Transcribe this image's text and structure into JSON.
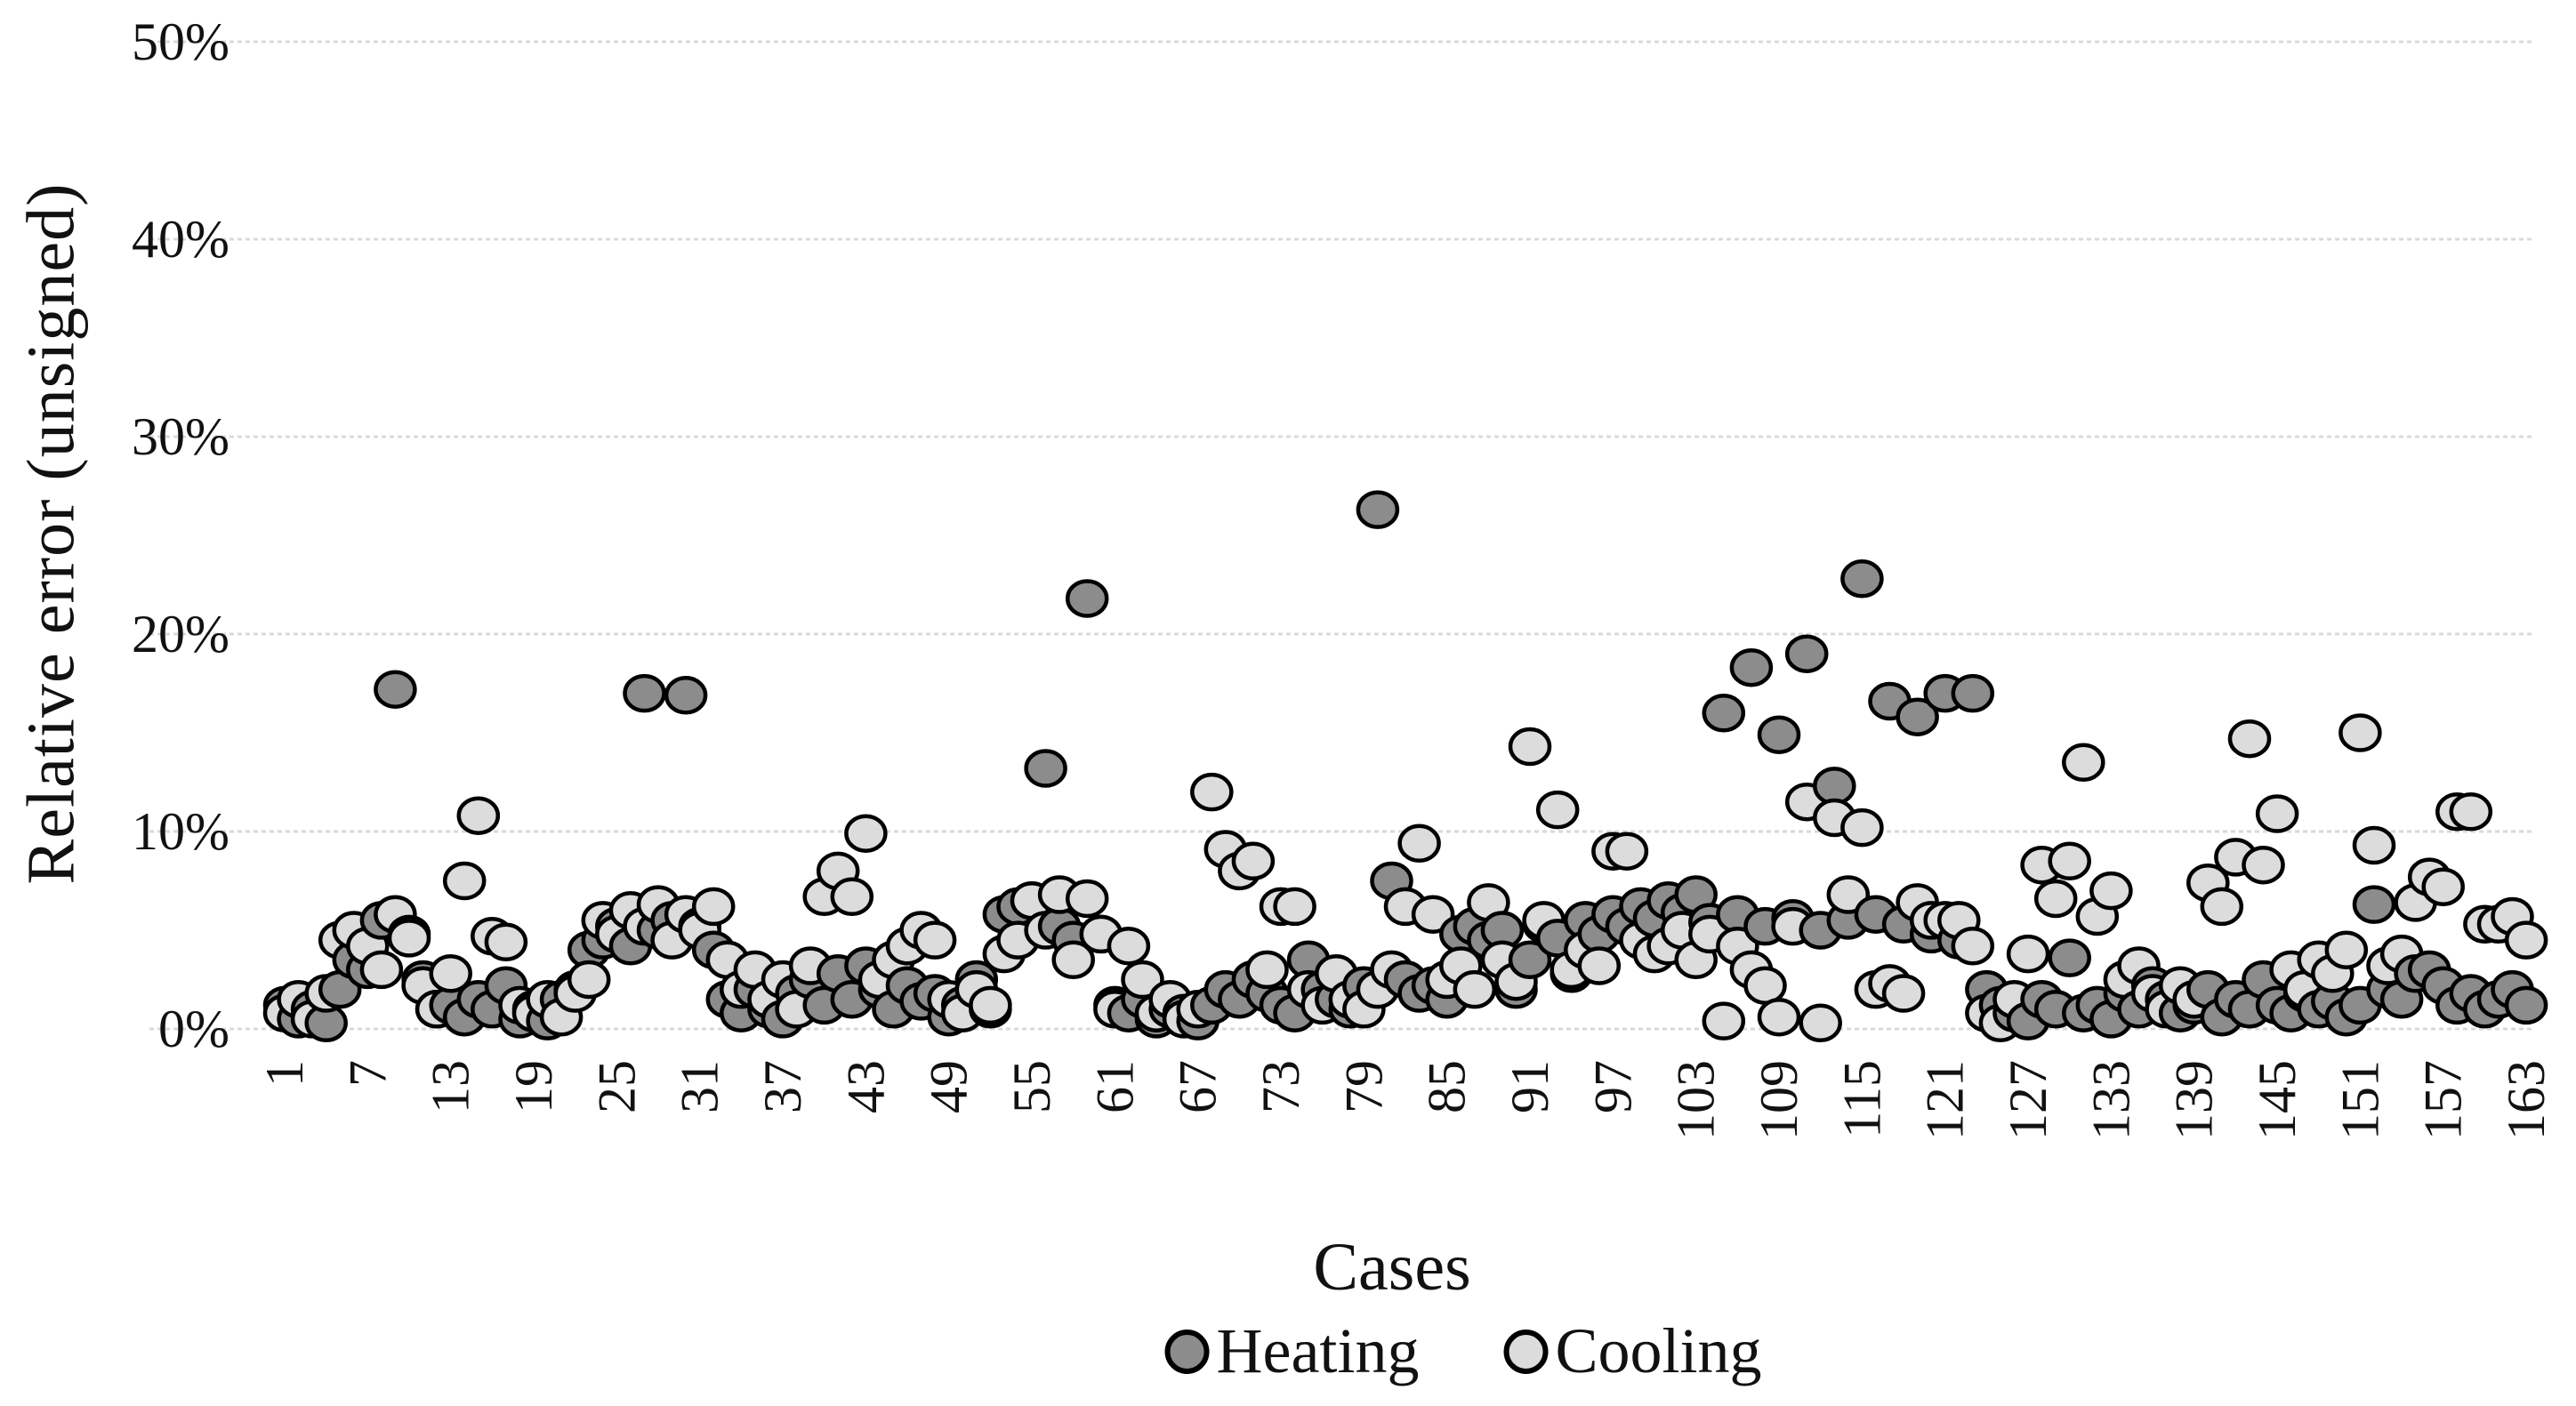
{
  "figure": {
    "y_axis_title": "Relative error (unsigned)",
    "x_axis_title": "Cases",
    "legend": {
      "heating_label": "Heating",
      "cooling_label": "Cooling"
    }
  },
  "colors": {
    "heating_fill": "#8C8C8C",
    "cooling_fill": "#DCDCDC",
    "marker_stroke": "#000000",
    "gridline": "#D9D9D9",
    "text": "#111111",
    "background": "#FFFFFF"
  },
  "chart_data": {
    "type": "scatter",
    "title": "",
    "xlabel": "Cases",
    "ylabel": "Relative error (unsigned)",
    "legend_position": "bottom",
    "grid": "horizontal-only",
    "ylim_pct": [
      0,
      50
    ],
    "y_tick_step_pct": 10,
    "y_tick_labels": [
      "0%",
      "10%",
      "20%",
      "30%",
      "40%",
      "50%"
    ],
    "x_first_case": 1,
    "x_last_case": 163,
    "x_tick_values": [
      1,
      7,
      13,
      19,
      25,
      31,
      37,
      43,
      49,
      55,
      61,
      67,
      73,
      79,
      85,
      91,
      97,
      103,
      109,
      115,
      121,
      127,
      133,
      139,
      145,
      151,
      157,
      163
    ],
    "series": [
      {
        "name": "Heating",
        "values_pct": [
          1.2,
          0.5,
          1.0,
          0.3,
          2.0,
          3.5,
          3.0,
          5.5,
          17.2,
          4.8,
          2.5,
          1.0,
          1.2,
          0.6,
          1.5,
          1.0,
          2.2,
          0.5,
          1.0,
          0.4,
          1.5,
          2.0,
          4.0,
          4.5,
          5.2,
          4.2,
          17.0,
          5.0,
          5.5,
          16.9,
          5.2,
          4.0,
          1.5,
          0.8,
          2.0,
          1.0,
          0.5,
          1.8,
          2.5,
          1.2,
          2.8,
          1.5,
          3.2,
          2.0,
          1.0,
          2.2,
          1.4,
          1.8,
          0.6,
          1.2,
          2.5,
          1.0,
          5.8,
          6.2,
          6.5,
          13.2,
          5.2,
          4.5,
          21.8,
          4.8,
          1.2,
          0.8,
          1.5,
          0.5,
          1.0,
          0.8,
          0.4,
          1.2,
          2.0,
          1.5,
          2.5,
          1.8,
          1.2,
          0.8,
          3.5,
          2.0,
          1.5,
          1.0,
          2.2,
          26.3,
          7.5,
          2.5,
          1.8,
          2.2,
          1.5,
          4.8,
          5.2,
          4.5,
          5.0,
          2.0,
          3.5,
          5.3,
          4.6,
          2.8,
          5.5,
          4.8,
          5.8,
          5.2,
          6.2,
          5.6,
          6.5,
          5.9,
          6.8,
          5.4,
          16.0,
          5.8,
          18.3,
          5.2,
          14.9,
          5.6,
          19.0,
          5.0,
          12.3,
          5.5,
          22.8,
          5.8,
          16.6,
          5.3,
          15.8,
          4.8,
          17.0,
          4.5,
          17.0,
          2.0,
          1.2,
          0.8,
          0.4,
          1.5,
          1.0,
          3.6,
          0.8,
          1.2,
          0.5,
          1.8,
          1.0,
          2.2,
          1.5,
          0.8,
          1.2,
          2.0,
          0.6,
          1.5,
          1.0,
          2.5,
          1.2,
          0.8,
          1.8,
          1.0,
          1.4,
          0.6,
          1.2,
          6.3,
          2.0,
          1.5,
          2.8,
          3.0,
          2.2,
          1.2,
          1.8,
          1.0,
          1.5,
          2.0,
          1.2
        ]
      },
      {
        "name": "Cooling",
        "values_pct": [
          0.8,
          1.5,
          0.5,
          1.8,
          4.5,
          5.0,
          4.2,
          3.0,
          5.8,
          4.6,
          2.2,
          1.0,
          2.8,
          7.5,
          10.8,
          4.7,
          4.4,
          1.2,
          0.8,
          1.5,
          0.6,
          1.8,
          2.5,
          5.5,
          4.8,
          6.0,
          5.2,
          6.3,
          4.5,
          5.8,
          5.0,
          6.2,
          3.5,
          2.0,
          3.0,
          1.5,
          2.5,
          1.0,
          3.2,
          6.7,
          8.0,
          6.7,
          9.9,
          2.5,
          3.5,
          4.2,
          5.0,
          4.5,
          1.5,
          0.8,
          2.0,
          1.2,
          3.8,
          4.5,
          6.5,
          5.0,
          6.8,
          3.5,
          6.6,
          4.8,
          1.0,
          4.2,
          2.5,
          0.8,
          1.5,
          0.5,
          1.0,
          12.0,
          9.1,
          8.0,
          8.5,
          3.0,
          6.2,
          6.2,
          2.0,
          1.2,
          2.8,
          1.5,
          1.0,
          2.0,
          3.0,
          6.2,
          9.4,
          5.8,
          2.5,
          3.2,
          2.0,
          6.4,
          3.5,
          2.4,
          14.3,
          5.5,
          11.1,
          3.0,
          4.0,
          3.2,
          9.0,
          9.0,
          4.5,
          3.8,
          4.2,
          5.0,
          3.5,
          4.8,
          0.4,
          4.2,
          3.0,
          2.2,
          0.6,
          5.2,
          11.5,
          0.3,
          10.7,
          6.8,
          10.2,
          2.0,
          2.3,
          1.8,
          6.4,
          5.5,
          5.5,
          5.5,
          4.2,
          0.8,
          0.3,
          1.5,
          3.8,
          8.3,
          6.6,
          8.5,
          13.5,
          5.7,
          7.0,
          2.5,
          3.2,
          1.8,
          1.0,
          2.2,
          1.5,
          7.4,
          6.2,
          8.7,
          14.7,
          8.3,
          10.9,
          3.0,
          2.0,
          3.5,
          2.8,
          4.0,
          15.0,
          9.3,
          3.2,
          3.8,
          6.4,
          7.7,
          7.2,
          11.0,
          11.0,
          5.3,
          5.3,
          5.7,
          4.5
        ]
      }
    ]
  }
}
